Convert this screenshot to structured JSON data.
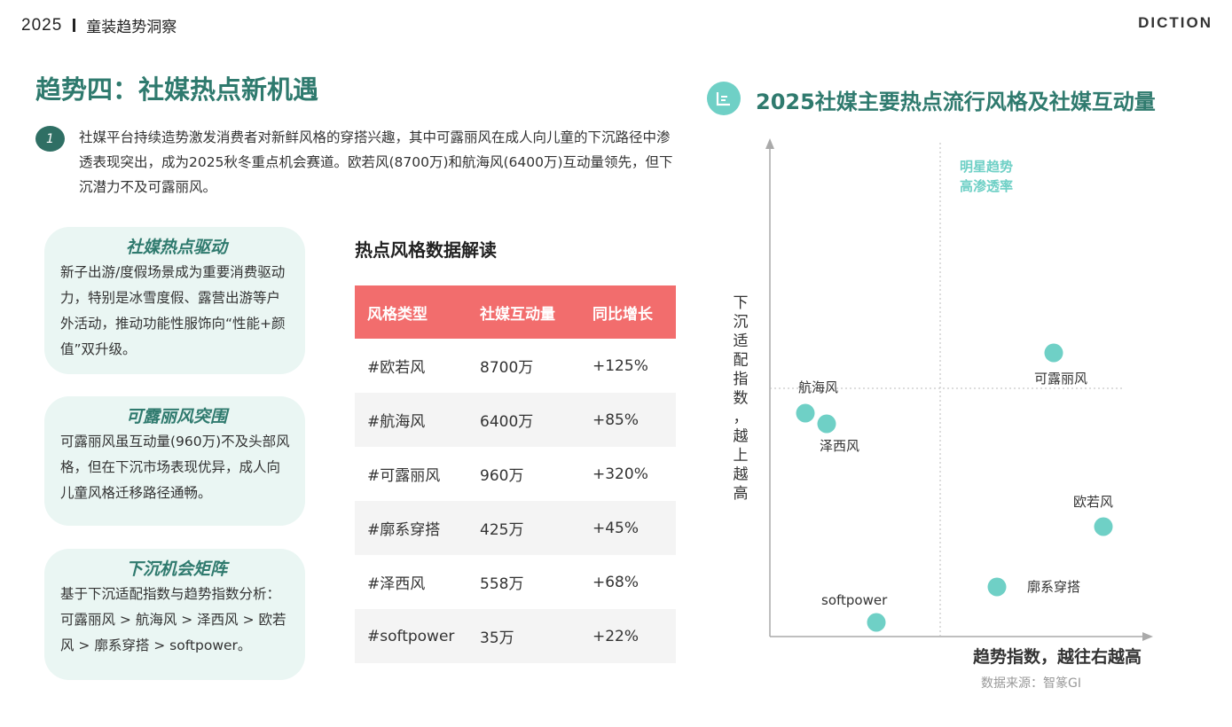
{
  "header": {
    "year": "2025",
    "subtitle": "童装趋势洞察",
    "logo": "DICTION"
  },
  "main_title": "趋势四：社媒热点新机遇",
  "intro": {
    "number": "1",
    "text": "社媒平台持续造势激发消费者对新鲜风格的穿搭兴趣，其中可露丽风在成人向儿童的下沉路径中渗透表现突出，成为2025秋冬重点机会赛道。欧若风(8700万)和航海风(6400万)互动量领先，但下沉潜力不及可露丽风。"
  },
  "cards": [
    {
      "title": "社媒热点驱动",
      "text": "新子出游/度假场景成为重要消费驱动力，特别是冰雪度假、露营出游等户外活动，推动功能性服饰向“性能+颜值”双升级。"
    },
    {
      "title": "可露丽风突围",
      "text": "可露丽风虽互动量(960万)不及头部风格，但在下沉市场表现优异，成人向儿童风格迁移路径通畅。"
    },
    {
      "title": "下沉机会矩阵",
      "text": "基于下沉适配指数与趋势指数分析：可露丽风 > 航海风 > 泽西风 > 欧若风 > 廓系穿搭 > softpower。"
    }
  ],
  "table": {
    "title": "热点风格数据解读",
    "headers": [
      "风格类型",
      "社媒互动量",
      "同比增长"
    ],
    "rows": [
      [
        "#欧若风",
        "8700万",
        "+125%"
      ],
      [
        "#航海风",
        "6400万",
        "+85%"
      ],
      [
        "#可露丽风",
        "960万",
        "+320%"
      ],
      [
        "#廓系穿搭",
        "425万",
        "+45%"
      ],
      [
        "#泽西风",
        "558万",
        "+68%"
      ],
      [
        "#softpower",
        "35万",
        "+22%"
      ]
    ]
  },
  "chart_title": "2025社媒主要热点流行风格及社媒互动量",
  "colors": {
    "accent": "#2f7a6e",
    "dot": "#6fd0c6",
    "header_red": "#f26d6d",
    "card_bg": "#eaf6f3"
  },
  "chart_data": {
    "type": "scatter",
    "title": "2025社媒主要热点流行风格及社媒互动量",
    "xlabel": "趋势指数，越往右越高",
    "ylabel": "下沉适配指数，越上越高",
    "quadrant_label": [
      "明星趋势",
      "高渗透率"
    ],
    "xlim": [
      0,
      100
    ],
    "ylim": [
      0,
      100
    ],
    "divider": {
      "x": 48,
      "y": 50
    },
    "points": [
      {
        "name": "可露丽风",
        "x": 80,
        "y": 80
      },
      {
        "name": "航海风",
        "x": 10,
        "y": 63
      },
      {
        "name": "泽西风",
        "x": 16,
        "y": 60
      },
      {
        "name": "欧若风",
        "x": 94,
        "y": 31
      },
      {
        "name": "廓系穿搭",
        "x": 64,
        "y": 14
      },
      {
        "name": "softpower",
        "x": 30,
        "y": 4
      }
    ]
  },
  "source": "数据来源：智篆GI"
}
